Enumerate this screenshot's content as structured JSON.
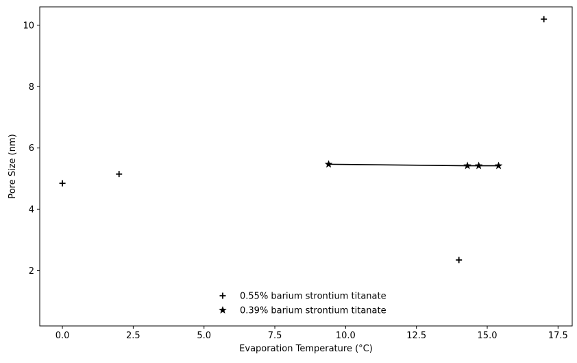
{
  "chart_data": {
    "type": "scatter",
    "xlabel": "Evaporation Temperature (°C)",
    "ylabel": "Pore Size (nm)",
    "xlim": [
      -0.8,
      18.0
    ],
    "ylim": [
      0.2,
      10.6
    ],
    "x_ticks": [
      0.0,
      2.5,
      5.0,
      7.5,
      10.0,
      12.5,
      15.0,
      17.5
    ],
    "x_tick_labels": [
      "0.0",
      "2.5",
      "5.0",
      "7.5",
      "10.0",
      "12.5",
      "15.0",
      "17.5"
    ],
    "y_ticks": [
      2,
      4,
      6,
      8,
      10
    ],
    "y_tick_labels": [
      "2",
      "4",
      "6",
      "8",
      "10"
    ],
    "grid": false,
    "legend_position": "bottom-center",
    "series": [
      {
        "name": "0.55% barium strontium titanate",
        "marker": "plus",
        "line": false,
        "color": "#000000",
        "points": [
          {
            "x": 0.0,
            "y": 4.85
          },
          {
            "x": 2.0,
            "y": 5.15
          },
          {
            "x": 14.0,
            "y": 2.35
          },
          {
            "x": 17.0,
            "y": 10.2
          }
        ]
      },
      {
        "name": "0.39% barium strontium titanate",
        "marker": "star",
        "line": true,
        "color": "#000000",
        "points": [
          {
            "x": 9.4,
            "y": 5.47
          },
          {
            "x": 14.3,
            "y": 5.42
          },
          {
            "x": 14.7,
            "y": 5.42
          },
          {
            "x": 15.4,
            "y": 5.42
          }
        ]
      }
    ]
  }
}
